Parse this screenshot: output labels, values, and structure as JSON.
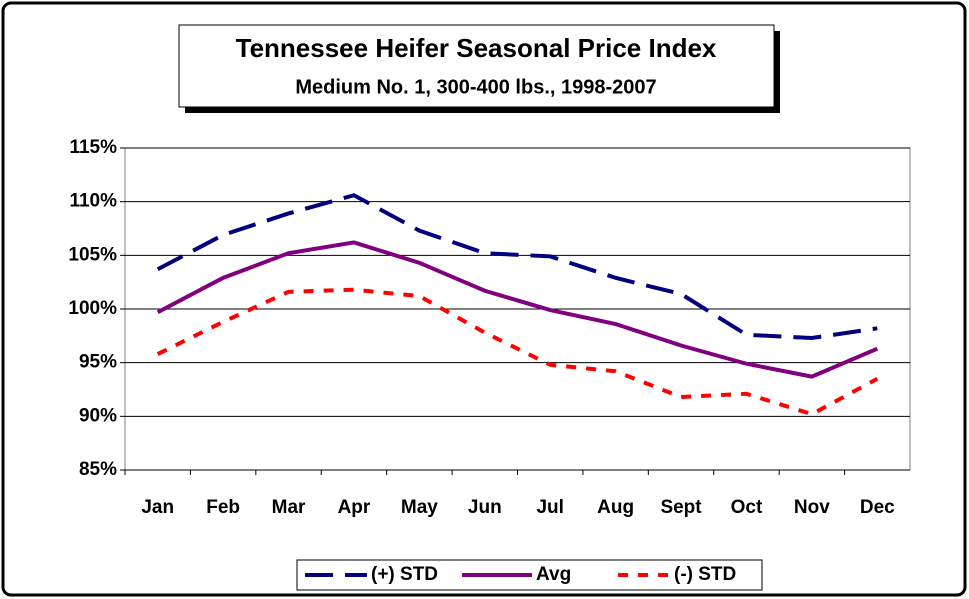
{
  "chart_data": {
    "type": "line",
    "title": "Tennessee Heifer Seasonal Price Index",
    "subtitle": "Medium No. 1, 300-400 lbs., 1998-2007",
    "categories": [
      "Jan",
      "Feb",
      "Mar",
      "Apr",
      "May",
      "Jun",
      "Jul",
      "Aug",
      "Sept",
      "Oct",
      "Nov",
      "Dec"
    ],
    "series": [
      {
        "name": "(+) STD",
        "color": "#000080",
        "dash": "long",
        "values": [
          103.7,
          106.9,
          108.9,
          110.6,
          107.3,
          105.2,
          104.9,
          102.9,
          101.4,
          97.6,
          97.3,
          98.2
        ]
      },
      {
        "name": "Avg",
        "color": "#800080",
        "dash": "solid",
        "values": [
          99.7,
          102.9,
          105.2,
          106.2,
          104.3,
          101.7,
          99.9,
          98.6,
          96.6,
          94.9,
          93.7,
          96.3
        ]
      },
      {
        "name": "(-) STD",
        "color": "#ff0000",
        "dash": "short",
        "values": [
          95.8,
          98.8,
          101.6,
          101.8,
          101.2,
          97.8,
          94.8,
          94.2,
          91.8,
          92.1,
          90.2,
          93.5
        ]
      }
    ],
    "ylim": [
      85,
      115
    ],
    "yticks": [
      {
        "value": 85,
        "label": "85%"
      },
      {
        "value": 90,
        "label": "90%"
      },
      {
        "value": 95,
        "label": "95%"
      },
      {
        "value": 100,
        "label": "100%"
      },
      {
        "value": 105,
        "label": "105%"
      },
      {
        "value": 110,
        "label": "110%"
      },
      {
        "value": 115,
        "label": "115%"
      }
    ],
    "grid": true,
    "legend": "bottom"
  }
}
